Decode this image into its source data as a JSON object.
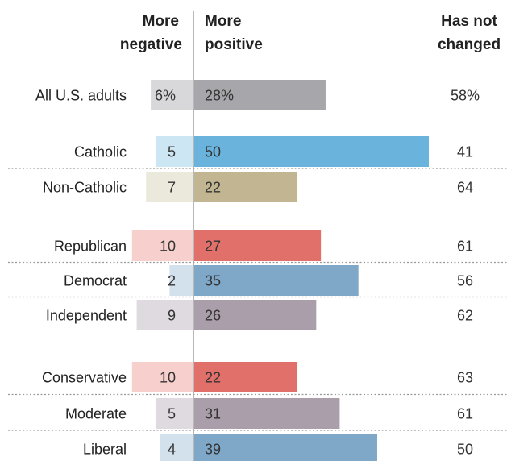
{
  "chart_data": {
    "type": "bar",
    "headers": {
      "negative": [
        "More",
        "negative"
      ],
      "positive": [
        "More",
        "positive"
      ],
      "unchanged": [
        "Has not",
        "changed"
      ]
    },
    "series_keys": [
      "More negative",
      "More positive",
      "Has not changed"
    ],
    "rows": [
      {
        "label": "All U.S. adults",
        "negative": 6,
        "positive": 28,
        "unchanged": 58,
        "neg_text": "6%",
        "pos_text": "28%",
        "unch_text": "58%",
        "pos_color": "#a7a7ab",
        "neg_color": "#d8d8da",
        "group": 0
      },
      {
        "label": "Catholic",
        "negative": 5,
        "positive": 50,
        "unchanged": 41,
        "neg_text": "5",
        "pos_text": "50",
        "unch_text": "41",
        "pos_color": "#6ab3dc",
        "neg_color": "#cde6f4",
        "group": 1
      },
      {
        "label": "Non-Catholic",
        "negative": 7,
        "positive": 22,
        "unchanged": 64,
        "neg_text": "7",
        "pos_text": "22",
        "unch_text": "64",
        "pos_color": "#c1b691",
        "neg_color": "#ebe8dc",
        "group": 1
      },
      {
        "label": "Republican",
        "negative": 10,
        "positive": 27,
        "unchanged": 61,
        "neg_text": "10",
        "pos_text": "27",
        "unch_text": "61",
        "pos_color": "#e2706a",
        "neg_color": "#f7cfcc",
        "group": 2
      },
      {
        "label": "Democrat",
        "negative": 2,
        "positive": 35,
        "unchanged": 56,
        "neg_text": "2",
        "pos_text": "35",
        "unch_text": "56",
        "pos_color": "#7ea7c8",
        "neg_color": "#d3e1ed",
        "group": 2
      },
      {
        "label": "Independent",
        "negative": 9,
        "positive": 26,
        "unchanged": 62,
        "neg_text": "9",
        "pos_text": "26",
        "unch_text": "62",
        "pos_color": "#a99eaa",
        "neg_color": "#dfdae0",
        "group": 2
      },
      {
        "label": "Conservative",
        "negative": 10,
        "positive": 22,
        "unchanged": 63,
        "neg_text": "10",
        "pos_text": "22",
        "unch_text": "63",
        "pos_color": "#e2706a",
        "neg_color": "#f7cfcc",
        "group": 3
      },
      {
        "label": "Moderate",
        "negative": 5,
        "positive": 31,
        "unchanged": 61,
        "neg_text": "5",
        "pos_text": "31",
        "unch_text": "61",
        "pos_color": "#a99eaa",
        "neg_color": "#dfdae0",
        "group": 3
      },
      {
        "label": "Liberal",
        "negative": 4,
        "positive": 39,
        "unchanged": 50,
        "neg_text": "4",
        "pos_text": "39",
        "unch_text": "50",
        "pos_color": "#7ea7c8",
        "neg_color": "#d3e1ed",
        "group": 3
      }
    ],
    "axis_color": "#a0a0a0",
    "divider_color": "#9a9a9a"
  }
}
